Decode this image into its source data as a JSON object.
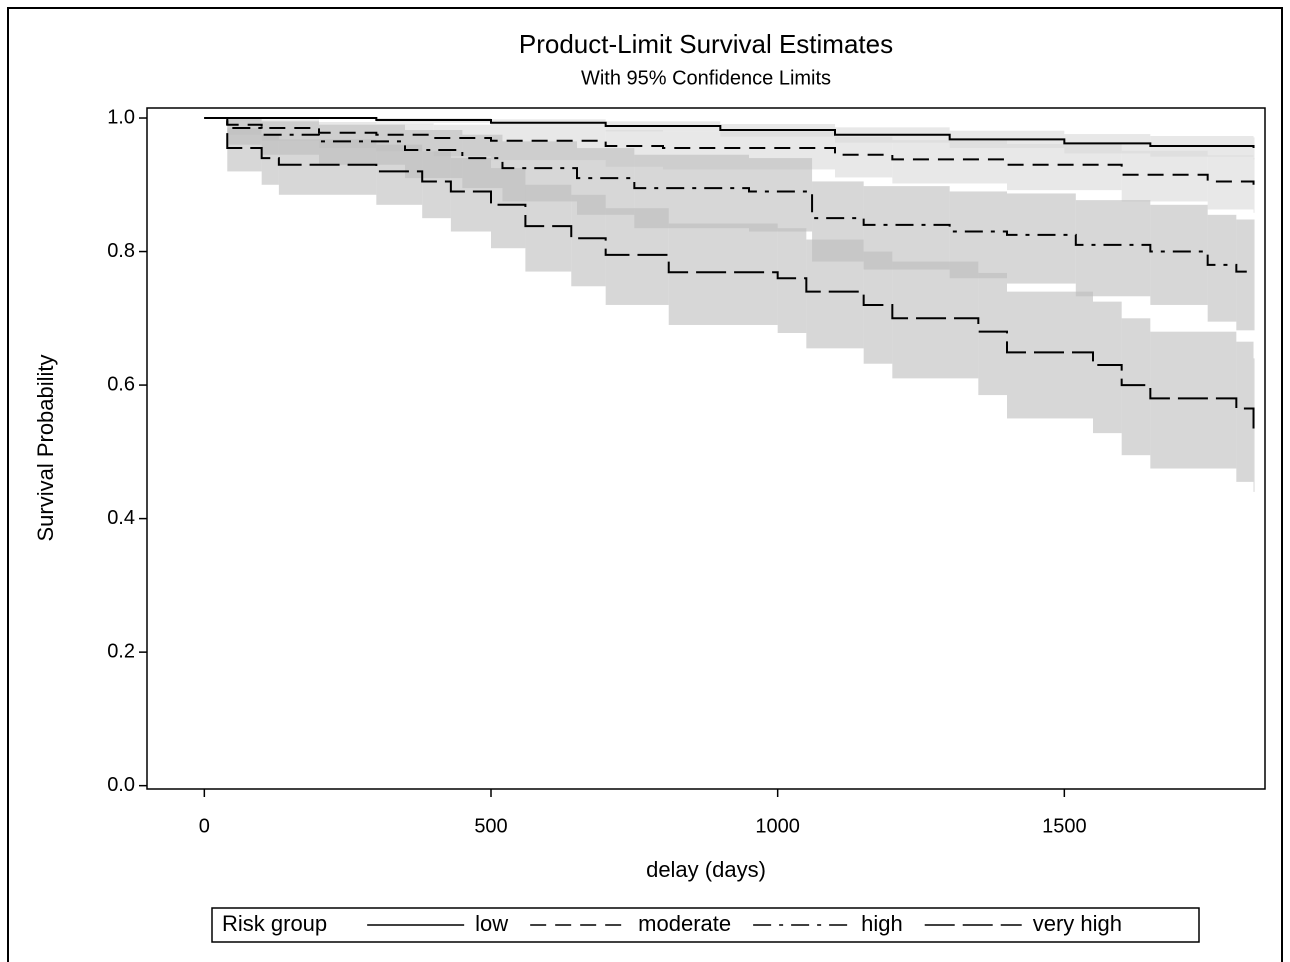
{
  "chart_data": {
    "type": "step",
    "title": "Product-Limit Survival Estimates",
    "subtitle": "With 95% Confidence Limits",
    "x_label": "delay (days)",
    "y_label": "Survival Probability",
    "legend_title": "Risk group",
    "legend_position": "bottom",
    "grid": false,
    "xlim": [
      -100,
      1850
    ],
    "ylim": [
      -0.005,
      1.015
    ],
    "xticks": [
      0,
      500,
      1000,
      1500
    ],
    "yticks": [
      {
        "value": 0,
        "label": "0.0"
      },
      0.2,
      0.4,
      0.6,
      0.8,
      {
        "value": 1,
        "label": "1.0"
      }
    ],
    "series": [
      {
        "name": "low",
        "color": "#000000",
        "band_color": "#d9d9d9",
        "dash": "none",
        "x": [
          0,
          300,
          500,
          700,
          900,
          1100,
          1300,
          1500,
          1650,
          1830
        ],
        "values": [
          1,
          0.997,
          0.993,
          0.988,
          0.982,
          0.975,
          0.968,
          0.962,
          0.958,
          0.955
        ],
        "lower": [
          1,
          0.993,
          0.987,
          0.98,
          0.972,
          0.963,
          0.955,
          0.947,
          0.942,
          0.938
        ],
        "upper": [
          1,
          1,
          0.998,
          0.995,
          0.991,
          0.986,
          0.981,
          0.976,
          0.973,
          0.971
        ]
      },
      {
        "name": "moderate",
        "color": "#000000",
        "band_color": "#d9d9d9",
        "dash": "16 9",
        "x": [
          0,
          40,
          100,
          200,
          300,
          400,
          500,
          700,
          800,
          1100,
          1200,
          1400,
          1600,
          1750,
          1830
        ],
        "values": [
          1,
          0.99,
          0.985,
          0.978,
          0.975,
          0.97,
          0.966,
          0.958,
          0.955,
          0.945,
          0.938,
          0.93,
          0.915,
          0.905,
          0.9
        ],
        "lower": [
          1,
          0.975,
          0.966,
          0.955,
          0.95,
          0.943,
          0.937,
          0.927,
          0.923,
          0.911,
          0.902,
          0.892,
          0.875,
          0.863,
          0.858
        ],
        "upper": [
          1,
          1,
          0.998,
          0.994,
          0.992,
          0.99,
          0.987,
          0.982,
          0.98,
          0.972,
          0.967,
          0.961,
          0.951,
          0.944,
          0.94
        ]
      },
      {
        "name": "high",
        "color": "#000000",
        "band_color": "#bdbdbd",
        "dash": "18 8 4 8",
        "x": [
          0,
          40,
          100,
          200,
          350,
          450,
          520,
          650,
          750,
          950,
          1060,
          1150,
          1300,
          1400,
          1520,
          1650,
          1750,
          1800,
          1830
        ],
        "values": [
          1,
          0.985,
          0.975,
          0.965,
          0.952,
          0.94,
          0.925,
          0.91,
          0.895,
          0.89,
          0.85,
          0.84,
          0.83,
          0.825,
          0.81,
          0.8,
          0.78,
          0.77,
          0.77
        ],
        "lower": [
          1,
          0.96,
          0.945,
          0.93,
          0.91,
          0.895,
          0.875,
          0.855,
          0.835,
          0.83,
          0.785,
          0.773,
          0.76,
          0.752,
          0.733,
          0.72,
          0.695,
          0.682,
          0.682
        ],
        "upper": [
          1,
          1,
          0.995,
          0.99,
          0.982,
          0.975,
          0.965,
          0.955,
          0.945,
          0.94,
          0.905,
          0.898,
          0.89,
          0.887,
          0.877,
          0.87,
          0.855,
          0.848,
          0.848
        ]
      },
      {
        "name": "very high",
        "color": "#000000",
        "band_color": "#bdbdbd",
        "dash": "30 8",
        "x": [
          0,
          40,
          100,
          130,
          300,
          380,
          430,
          500,
          560,
          640,
          700,
          810,
          1000,
          1050,
          1150,
          1200,
          1350,
          1400,
          1550,
          1600,
          1650,
          1800,
          1830
        ],
        "values": [
          1,
          0.955,
          0.94,
          0.93,
          0.92,
          0.905,
          0.89,
          0.87,
          0.838,
          0.82,
          0.795,
          0.769,
          0.76,
          0.74,
          0.72,
          0.7,
          0.68,
          0.649,
          0.63,
          0.6,
          0.58,
          0.565,
          0.535
        ],
        "lower": [
          1,
          0.92,
          0.9,
          0.885,
          0.87,
          0.85,
          0.83,
          0.805,
          0.77,
          0.748,
          0.72,
          0.69,
          0.678,
          0.655,
          0.632,
          0.61,
          0.585,
          0.55,
          0.528,
          0.495,
          0.475,
          0.455,
          0.44
        ],
        "upper": [
          1,
          0.985,
          0.975,
          0.968,
          0.96,
          0.95,
          0.94,
          0.925,
          0.9,
          0.885,
          0.865,
          0.842,
          0.835,
          0.818,
          0.8,
          0.785,
          0.768,
          0.74,
          0.725,
          0.7,
          0.68,
          0.665,
          0.64
        ]
      }
    ]
  }
}
